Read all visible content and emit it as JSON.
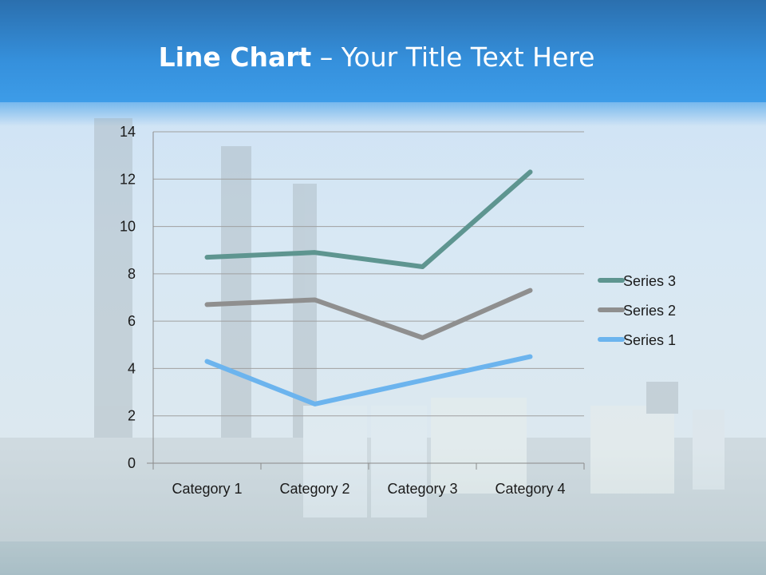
{
  "slide": {
    "title_bold": "Line Chart",
    "title_rest": " – Your Title Text Here"
  },
  "chart_data": {
    "type": "line",
    "title": "",
    "xlabel": "",
    "ylabel": "",
    "categories": [
      "Category 1",
      "Category 2",
      "Category 3",
      "Category 4"
    ],
    "ylim": [
      0,
      14
    ],
    "yticks": [
      0,
      2,
      4,
      6,
      8,
      10,
      12,
      14
    ],
    "grid": true,
    "legend_position": "right",
    "series": [
      {
        "name": "Series 1",
        "values": [
          4.3,
          2.5,
          3.5,
          4.5
        ],
        "color": "#6cb4ee"
      },
      {
        "name": "Series 2",
        "values": [
          6.7,
          6.9,
          5.3,
          7.3
        ],
        "color": "#8f8f8f"
      },
      {
        "name": "Series 3",
        "values": [
          8.7,
          8.9,
          8.3,
          12.3
        ],
        "color": "#5e9590"
      }
    ]
  }
}
